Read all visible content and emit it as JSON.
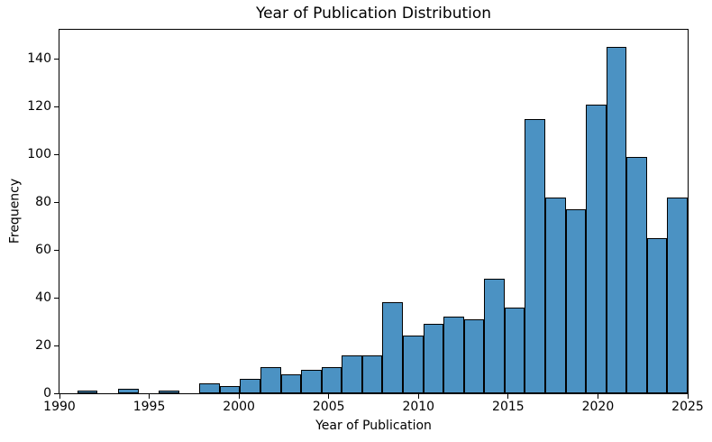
{
  "chart_data": {
    "type": "bar",
    "subtype": "histogram",
    "title": "Year of Publication Distribution",
    "xlabel": "Year of Publication",
    "ylabel": "Frequency",
    "xlim": [
      1990,
      2025
    ],
    "ylim": [
      0,
      152.25
    ],
    "bin_start": 1991,
    "bin_end": 2025,
    "n_bins": 30,
    "bin_width_years": 1.1333,
    "counts": [
      1,
      0,
      2,
      0,
      1,
      0,
      4,
      3,
      6,
      11,
      8,
      10,
      11,
      16,
      16,
      38,
      24,
      29,
      32,
      31,
      48,
      36,
      115,
      82,
      77,
      121,
      145,
      99,
      65,
      82
    ],
    "x_ticks": [
      1990,
      1995,
      2000,
      2005,
      2010,
      2015,
      2020,
      2025
    ],
    "y_ticks": [
      0,
      20,
      40,
      60,
      80,
      100,
      120,
      140
    ],
    "grid": false,
    "legend": null,
    "bar_color": "#4b92c3",
    "bar_edge_color": "#000000",
    "spine_color": "#000000",
    "text_color": "#000000",
    "background_color": "#ffffff"
  }
}
